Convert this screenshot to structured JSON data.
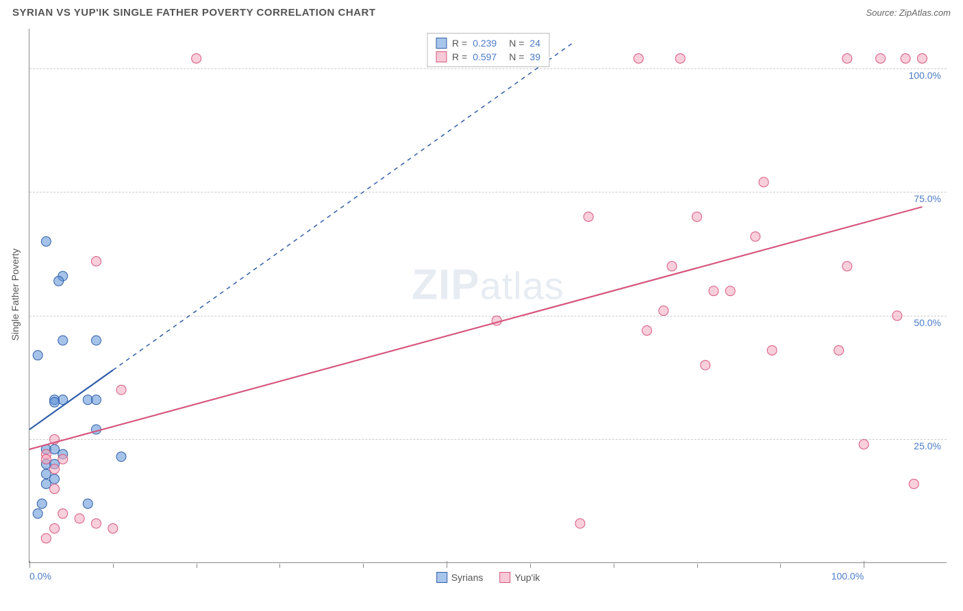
{
  "header": {
    "title": "SYRIAN VS YUP'IK SINGLE FATHER POVERTY CORRELATION CHART",
    "source_prefix": "Source: ",
    "source_name": "ZipAtlas.com"
  },
  "watermark": {
    "zip": "ZIP",
    "atlas": "atlas"
  },
  "chart": {
    "type": "scatter",
    "y_axis_title": "Single Father Poverty",
    "background_color": "#ffffff",
    "grid_color": "#cccccc",
    "axis_color": "#888888",
    "label_color": "#4a7bc8",
    "xlim": [
      0,
      110
    ],
    "ylim": [
      0,
      108
    ],
    "y_ticks": [
      {
        "v": 25,
        "label": "25.0%"
      },
      {
        "v": 50,
        "label": "50.0%"
      },
      {
        "v": 75,
        "label": "75.0%"
      },
      {
        "v": 100,
        "label": "100.0%"
      }
    ],
    "x_ticks": [
      0,
      50,
      100
    ],
    "x_minor_ticks": [
      10,
      20,
      30,
      40,
      60,
      70,
      80,
      90
    ],
    "x_tick_labels": [
      {
        "v": 0,
        "label": "0.0%"
      },
      {
        "v": 100,
        "label": "100.0%"
      }
    ],
    "marker_radius": 7,
    "marker_opacity": 0.55,
    "series": [
      {
        "name": "Syrians",
        "color": "#5b8fd6",
        "border": "#2f5ea8",
        "r_value": "0.239",
        "n_value": "24",
        "trend": {
          "x1": 0,
          "y1": 27,
          "x2": 10,
          "y2": 39,
          "dash": false,
          "width": 2.2
        },
        "trend_dash": {
          "x1": 10,
          "y1": 39,
          "x2": 65,
          "y2": 105,
          "dash": true,
          "width": 1.5
        },
        "points": [
          [
            2,
            65
          ],
          [
            4,
            58
          ],
          [
            3.5,
            57
          ],
          [
            4,
            45
          ],
          [
            8,
            45
          ],
          [
            1,
            42
          ],
          [
            3,
            33
          ],
          [
            4,
            33
          ],
          [
            3,
            32.5
          ],
          [
            7,
            33
          ],
          [
            8,
            33
          ],
          [
            8,
            27
          ],
          [
            2,
            23
          ],
          [
            3,
            23
          ],
          [
            4,
            22
          ],
          [
            2,
            20
          ],
          [
            3,
            20
          ],
          [
            2,
            18
          ],
          [
            3,
            17
          ],
          [
            2,
            16
          ],
          [
            11,
            21.5
          ],
          [
            1.5,
            12
          ],
          [
            7,
            12
          ],
          [
            1,
            10
          ]
        ]
      },
      {
        "name": "Yup'ik",
        "color": "#f4a7bd",
        "border": "#d6577e",
        "r_value": "0.597",
        "n_value": "39",
        "trend": {
          "x1": 0,
          "y1": 23,
          "x2": 107,
          "y2": 72,
          "dash": false,
          "width": 2.2
        },
        "points": [
          [
            20,
            102
          ],
          [
            73,
            102
          ],
          [
            78,
            102
          ],
          [
            98,
            102
          ],
          [
            102,
            102
          ],
          [
            105,
            102
          ],
          [
            107,
            102
          ],
          [
            88,
            77
          ],
          [
            67,
            70
          ],
          [
            80,
            70
          ],
          [
            87,
            66
          ],
          [
            8,
            61
          ],
          [
            77,
            60
          ],
          [
            98,
            60
          ],
          [
            82,
            55
          ],
          [
            84,
            55
          ],
          [
            56,
            49
          ],
          [
            76,
            51
          ],
          [
            104,
            50
          ],
          [
            74,
            47
          ],
          [
            81,
            40
          ],
          [
            89,
            43
          ],
          [
            97,
            43
          ],
          [
            11,
            35
          ],
          [
            3,
            25
          ],
          [
            100,
            24
          ],
          [
            2,
            22
          ],
          [
            2,
            21
          ],
          [
            3,
            19
          ],
          [
            4,
            21
          ],
          [
            3,
            15
          ],
          [
            106,
            16
          ],
          [
            4,
            10
          ],
          [
            6,
            9
          ],
          [
            8,
            8
          ],
          [
            3,
            7
          ],
          [
            10,
            7
          ],
          [
            66,
            8
          ],
          [
            2,
            5
          ]
        ]
      }
    ],
    "legend_bottom": [
      {
        "label": "Syrians",
        "fill": "#a8c5ec",
        "border": "#2f5ea8"
      },
      {
        "label": "Yup'ik",
        "fill": "#f8c9d7",
        "border": "#d6577e"
      }
    ],
    "legend_top_colors": {
      "syrian_fill": "#a8c5ec",
      "syrian_border": "#2f5ea8",
      "yupik_fill": "#f8c9d7",
      "yupik_border": "#d6577e"
    }
  }
}
